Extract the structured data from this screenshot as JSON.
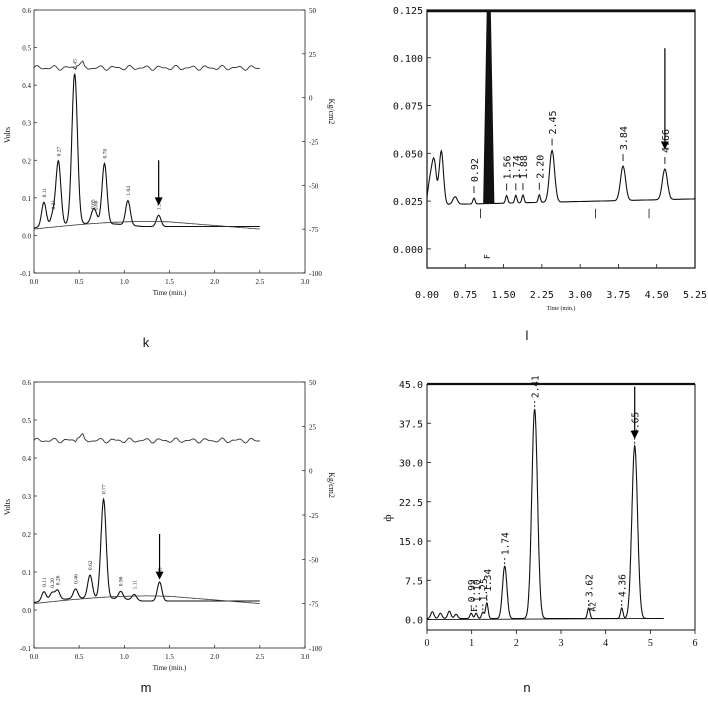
{
  "figure": {
    "panel_labels": [
      "k",
      "l",
      "m",
      "n"
    ]
  },
  "chart_data": [
    {
      "panel": "k",
      "type": "line",
      "ylabel": "Volts",
      "y2label": "Kg/cm2",
      "xlabel": "Time (min.)",
      "xlim": [
        0.0,
        3.0
      ],
      "ylim": [
        -0.1,
        0.6
      ],
      "y2lim": [
        -100,
        50
      ],
      "xticks": [
        "0.0",
        "0.5",
        "1.0",
        "1.5",
        "2.0",
        "2.5",
        "3.0"
      ],
      "yticks": [
        "-0.1",
        "0.0",
        "0.1",
        "0.2",
        "0.3",
        "0.4",
        "0.5",
        "0.6"
      ],
      "y2ticks": [
        "50",
        "25",
        "0",
        "-25",
        "-50",
        "-75",
        "-100"
      ],
      "peaks": [
        {
          "t": 0.11,
          "label": "0.11",
          "h": 0.065
        },
        {
          "t": 0.21,
          "label": "0.21",
          "h": 0.03
        },
        {
          "t": 0.27,
          "label": "0.27",
          "h": 0.17
        },
        {
          "t": 0.45,
          "label": "0.45",
          "h": 0.4
        },
        {
          "t": 0.65,
          "label": "0.65",
          "h": 0.025
        },
        {
          "t": 0.68,
          "label": "0.68",
          "h": 0.022
        },
        {
          "t": 0.78,
          "label": "0.78",
          "h": 0.16
        },
        {
          "t": 1.04,
          "label": "1.04",
          "h": 0.065
        },
        {
          "t": 1.38,
          "label": "1.38",
          "h": 0.03
        }
      ],
      "pressure_level": 17,
      "arrow_at": 1.38,
      "trace_end": 2.5
    },
    {
      "panel": "l",
      "type": "line",
      "xlim": [
        0.0,
        5.25
      ],
      "ylim": [
        -0.01,
        0.125
      ],
      "xlabel": "Time (min.)",
      "xticks": [
        "0.00",
        "0.75",
        "1.50",
        "2.25",
        "3.00",
        "3.75",
        "4.50",
        "5.25"
      ],
      "yticks": [
        "0.000",
        "0.025",
        "0.050",
        "0.075",
        "0.100",
        "0.125"
      ],
      "peaks": [
        {
          "t": 0.92,
          "label": "0.92",
          "h": 0.003
        },
        {
          "t": 1.56,
          "label": "1.56",
          "h": 0.004
        },
        {
          "t": 1.74,
          "label": "1.74",
          "h": 0.004
        },
        {
          "t": 1.88,
          "label": "1.88",
          "h": 0.004
        },
        {
          "t": 2.2,
          "label": "2.20",
          "h": 0.004
        },
        {
          "t": 2.45,
          "label": "2.45",
          "h": 0.027
        },
        {
          "t": 3.84,
          "label": "3.84",
          "h": 0.018
        },
        {
          "t": 4.66,
          "label": "4.66",
          "h": 0.016
        }
      ],
      "saturated_peak": {
        "t": 1.21,
        "label": "F"
      },
      "arrow_at": 4.66
    },
    {
      "panel": "m",
      "type": "line",
      "ylabel": "Volts",
      "y2label": "Kg/cm2",
      "xlabel": "Time (min.)",
      "xlim": [
        0.0,
        3.0
      ],
      "ylim": [
        -0.1,
        0.6
      ],
      "y2lim": [
        -100,
        50
      ],
      "xticks": [
        "0.0",
        "0.5",
        "1.0",
        "1.5",
        "2.0",
        "2.5",
        "3.0"
      ],
      "yticks": [
        "-0.1",
        "0.0",
        "0.1",
        "0.2",
        "0.3",
        "0.4",
        "0.5",
        "0.6"
      ],
      "y2ticks": [
        "50",
        "25",
        "0",
        "-25",
        "-50",
        "-75",
        "-100"
      ],
      "peaks": [
        {
          "t": 0.11,
          "label": "0.11",
          "h": 0.025
        },
        {
          "t": 0.2,
          "label": "0.20",
          "h": 0.02
        },
        {
          "t": 0.26,
          "label": "0.26",
          "h": 0.025
        },
        {
          "t": 0.46,
          "label": "0.46",
          "h": 0.025
        },
        {
          "t": 0.62,
          "label": "0.62",
          "h": 0.06
        },
        {
          "t": 0.77,
          "label": "0.77",
          "h": 0.26
        },
        {
          "t": 0.96,
          "label": "0.96",
          "h": 0.02
        },
        {
          "t": 1.11,
          "label": "1.11",
          "h": 0.015
        },
        {
          "t": 1.39,
          "label": "1.39",
          "h": 0.05
        }
      ],
      "pressure_level": 17,
      "arrow_at": 1.39,
      "trace_end": 2.5
    },
    {
      "panel": "n",
      "type": "line",
      "ylabel": "ф",
      "xlim": [
        0,
        6
      ],
      "ylim": [
        -2.0,
        45.0
      ],
      "xticks": [
        "0",
        "1",
        "2",
        "3",
        "4",
        "5",
        "6"
      ],
      "yticks": [
        "0.0",
        "7.5",
        "15.0",
        "22.5",
        "30.0",
        "37.5",
        "45.0"
      ],
      "peaks": [
        {
          "t": 0.99,
          "label": "0.99",
          "h": 1.0
        },
        {
          "t": 1.1,
          "label": "1.10",
          "h": 1.0
        },
        {
          "t": 1.25,
          "label": "1.25",
          "h": 1.2
        },
        {
          "t": 1.34,
          "label": "1.34",
          "h": 3.0
        },
        {
          "t": 1.74,
          "label": "1.74",
          "h": 10.0
        },
        {
          "t": 2.41,
          "label": "2.41",
          "h": 40.0
        },
        {
          "t": 3.62,
          "label": "3.62",
          "h": 2.0
        },
        {
          "t": 4.36,
          "label": "4.36",
          "h": 2.0
        },
        {
          "t": 4.65,
          "label": "4.65",
          "h": 33.0
        }
      ],
      "small_labels": [
        {
          "t": 1.05,
          "label": "F"
        },
        {
          "t": 3.7,
          "label": "A2"
        }
      ],
      "arrow_at": 4.65
    }
  ]
}
